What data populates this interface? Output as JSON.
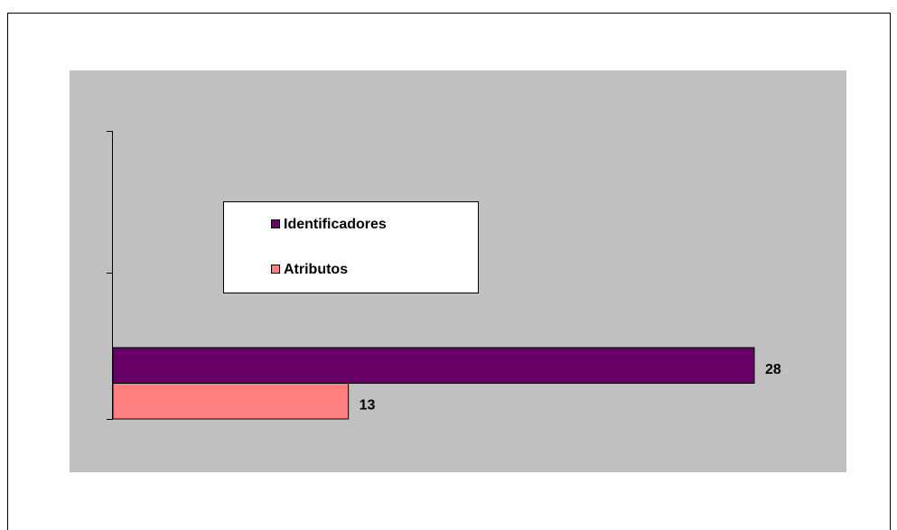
{
  "chart_data": {
    "type": "barh",
    "categories": [
      null
    ],
    "series": [
      {
        "name": "Identificadores",
        "color": "#660066",
        "values": [
          28
        ]
      },
      {
        "name": "Atributos",
        "color": "#ff8080",
        "values": [
          13
        ]
      }
    ],
    "xlim": [
      4.3,
      28
    ],
    "legend": "inside-left",
    "background": "#c0c0c0"
  }
}
